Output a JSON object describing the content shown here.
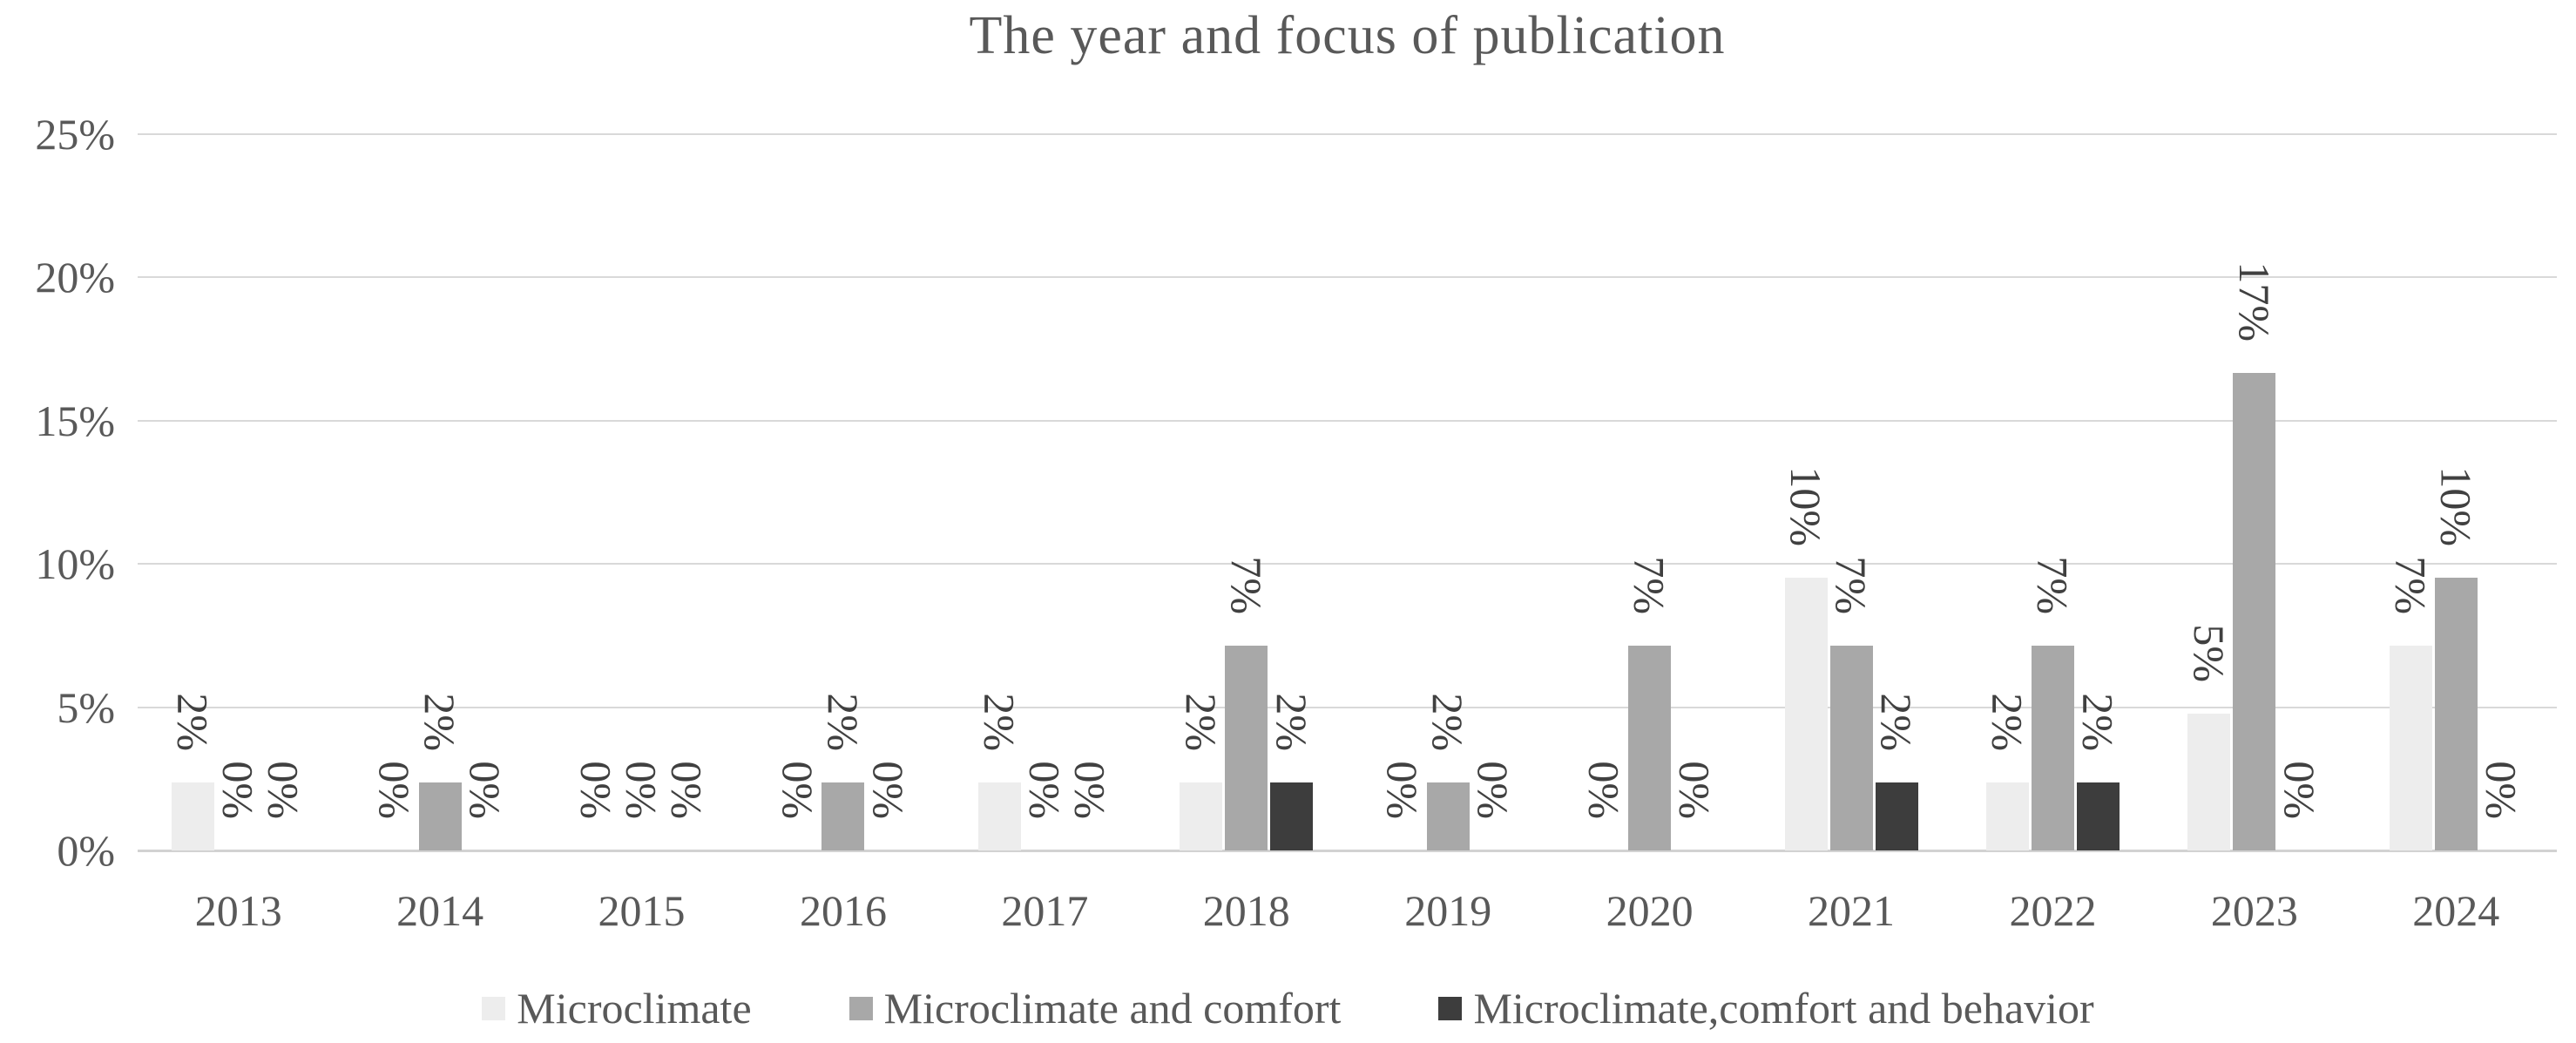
{
  "title": "The year and focus of publication",
  "chart_data": {
    "type": "bar",
    "title": "The year and focus of publication",
    "categories": [
      "2013",
      "2014",
      "2015",
      "2016",
      "2017",
      "2018",
      "2019",
      "2020",
      "2021",
      "2022",
      "2023",
      "2024"
    ],
    "series": [
      {
        "name": "Microclimate",
        "color": "#ededed",
        "values": [
          2.38,
          0,
          0,
          0,
          2.38,
          2.38,
          0,
          0,
          9.52,
          2.38,
          4.76,
          7.14
        ],
        "labels": [
          "2%",
          "0%",
          "0%",
          "0%",
          "2%",
          "2%",
          "0%",
          "0%",
          "10%",
          "2%",
          "5%",
          "7%"
        ]
      },
      {
        "name": "Microclimate and comfort",
        "color": "#a8a8a8",
        "values": [
          0,
          2.38,
          0,
          2.38,
          0,
          7.14,
          2.38,
          7.14,
          7.14,
          7.14,
          16.67,
          9.52
        ],
        "labels": [
          "0%",
          "2%",
          "0%",
          "2%",
          "0%",
          "7%",
          "2%",
          "7%",
          "7%",
          "7%",
          "17%",
          "10%"
        ]
      },
      {
        "name": "Microclimate,comfort and behavior",
        "color": "#3d3d3d",
        "values": [
          0,
          0,
          0,
          0,
          0,
          2.38,
          0,
          0,
          2.38,
          2.38,
          0,
          0
        ],
        "labels": [
          "0%",
          "0%",
          "0%",
          "0%",
          "0%",
          "2%",
          "0%",
          "0%",
          "2%",
          "2%",
          "0%",
          "0%"
        ]
      }
    ],
    "y_axis": {
      "ticks": [
        "0%",
        "5%",
        "10%",
        "15%",
        "20%",
        "25%"
      ],
      "min": 0,
      "max": 25
    },
    "xlabel": "",
    "ylabel": "",
    "grid": true,
    "legend_position": "bottom",
    "data_label_rotation_deg": 90
  },
  "colors": {
    "background": "#ffffff",
    "gridline": "#d9d9d9",
    "axis_text": "#595959",
    "data_label_text": "#404040",
    "title_text": "#595959"
  }
}
